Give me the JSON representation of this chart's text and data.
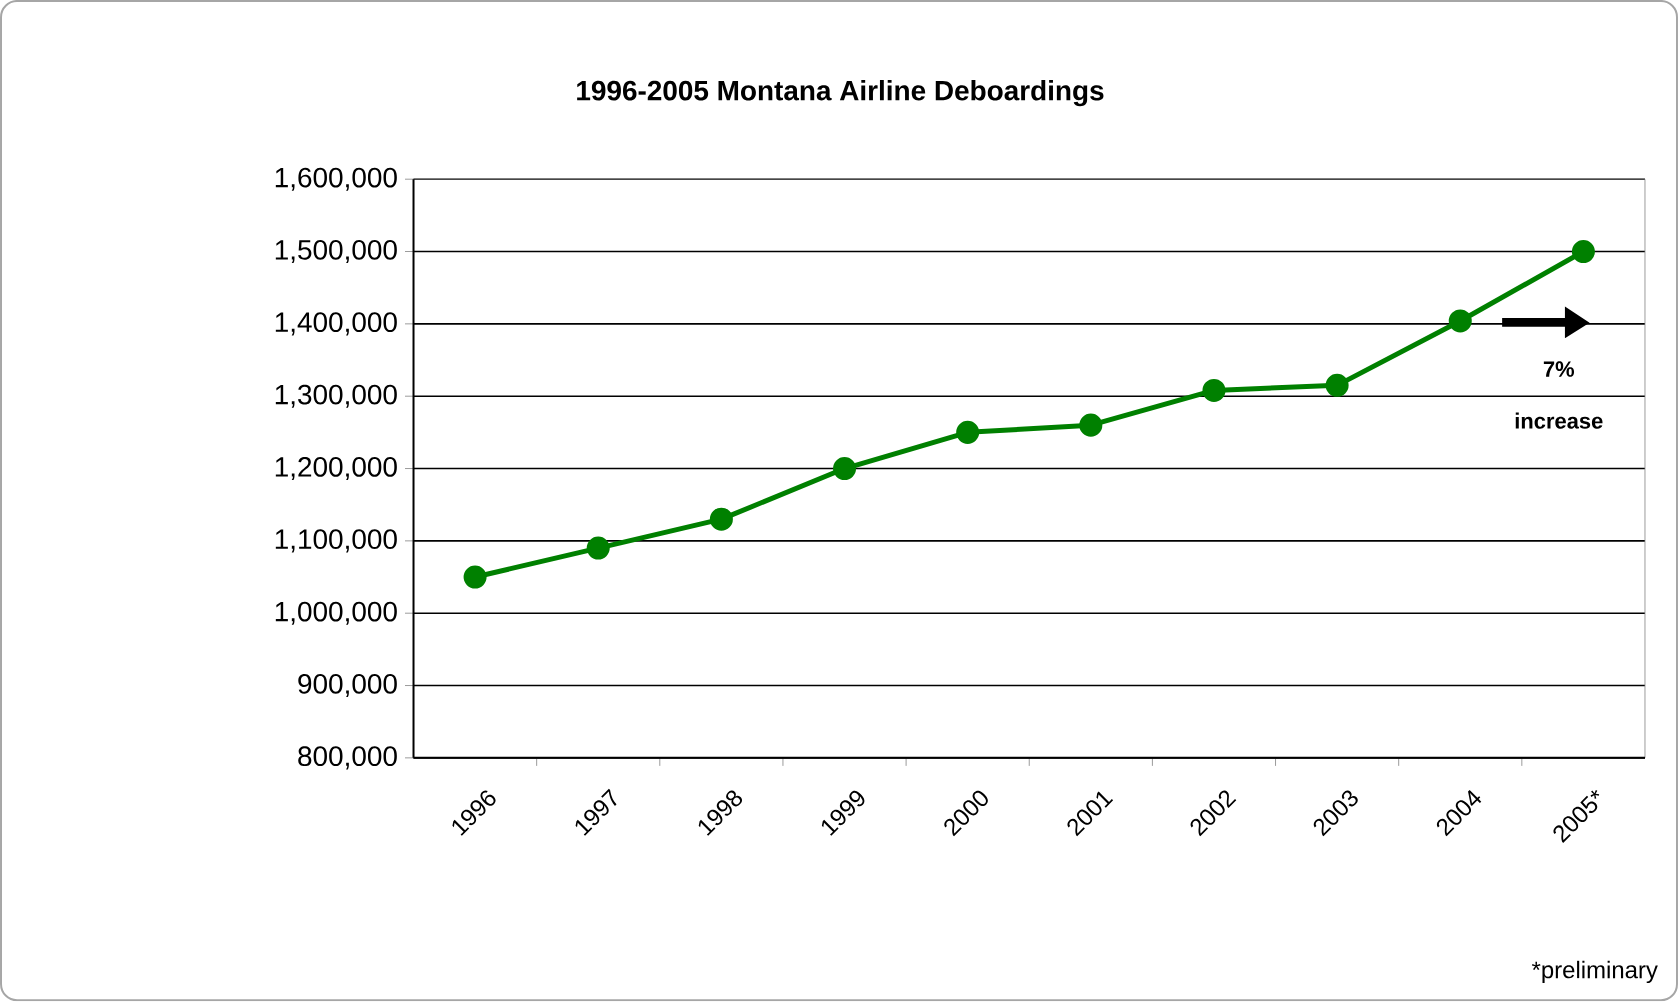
{
  "chart_data": {
    "type": "line",
    "title": "1996-2005 Montana Airline Deboardings",
    "categories": [
      "1996",
      "1997",
      "1998",
      "1999",
      "2000",
      "2001",
      "2002",
      "2003",
      "2004",
      "2005*"
    ],
    "series": [
      {
        "color": "#008000",
        "values": [
          1050000,
          1090000,
          1130000,
          1200000,
          1250000,
          1260000,
          1308000,
          1315000,
          1404000,
          1500000
        ]
      }
    ],
    "ylim": [
      800000,
      1600000
    ],
    "yticks": [
      {
        "value": 800000,
        "label": "800,000"
      },
      {
        "value": 900000,
        "label": "900,000"
      },
      {
        "value": 1000000,
        "label": "1,000,000"
      },
      {
        "value": 1100000,
        "label": "1,100,000"
      },
      {
        "value": 1200000,
        "label": "1,200,000"
      },
      {
        "value": 1300000,
        "label": "1,300,000"
      },
      {
        "value": 1400000,
        "label": "1,400,000"
      },
      {
        "value": 1500000,
        "label": "1,500,000"
      },
      {
        "value": 1600000,
        "label": "1,600,000"
      }
    ],
    "grid": "y",
    "marker": "circle",
    "line_style": "solid",
    "annotations": [
      "7% increase",
      "*preliminary"
    ]
  }
}
